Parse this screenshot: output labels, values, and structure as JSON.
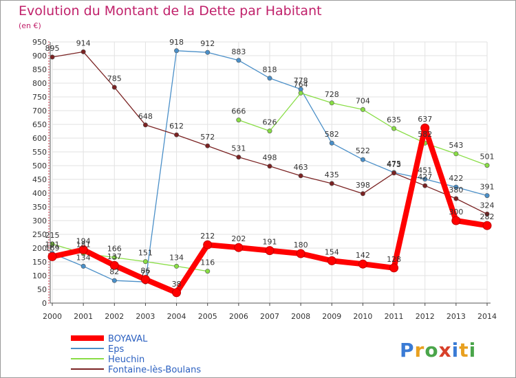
{
  "title": "Evolution du Montant de la Dette par Habitant",
  "subtitle": "(en €)",
  "logo_text": "Proxiti",
  "chart_data": {
    "type": "line",
    "title": "Evolution du Montant de la Dette par Habitant",
    "ylabel": "(en €)",
    "xlabel": "",
    "ylim": [
      0,
      950
    ],
    "yticks": [
      0,
      50,
      100,
      150,
      200,
      250,
      300,
      350,
      400,
      450,
      500,
      550,
      600,
      650,
      700,
      750,
      800,
      850,
      900,
      950
    ],
    "categories": [
      "2000",
      "2001",
      "2002",
      "2003",
      "2004",
      "2005",
      "2006",
      "2007",
      "2008",
      "2009",
      "2010",
      "2011",
      "2012",
      "2013",
      "2014"
    ],
    "grid": true,
    "legend_position": "bottom-left",
    "series": [
      {
        "name": "BOYAVAL",
        "color": "#ff0000",
        "values": [
          169,
          194,
          137,
          86,
          38,
          212,
          202,
          191,
          180,
          154,
          142,
          128,
          637,
          300,
          282
        ],
        "labels": [
          "169",
          "194",
          "137",
          "86",
          "38",
          "212",
          "202",
          "191",
          "180",
          "154",
          "142",
          "128",
          "637",
          "300",
          "282"
        ]
      },
      {
        "name": "Eps",
        "color": "#4a8fc8",
        "values": [
          181,
          134,
          82,
          77,
          918,
          912,
          883,
          818,
          778,
          582,
          522,
          475,
          451,
          422,
          391
        ],
        "labels": [
          "181",
          "134",
          "82",
          "77",
          "918",
          "912",
          "883",
          "818",
          "778",
          "582",
          "522",
          "475",
          "451",
          "422",
          "391"
        ]
      },
      {
        "name": "Heuchin",
        "color": "#88dd44",
        "values": [
          215,
          181,
          166,
          151,
          134,
          116,
          666,
          626,
          764,
          728,
          704,
          635,
          582,
          543,
          501
        ],
        "labels": [
          "215",
          "181",
          "166",
          "151",
          "134",
          "116",
          "666",
          "626",
          "764",
          "728",
          "704",
          "635",
          "582",
          "543",
          "501"
        ]
      },
      {
        "name": "Fontaine-lès-Boulans",
        "color": "#7a2222",
        "values": [
          895,
          914,
          785,
          648,
          612,
          572,
          531,
          498,
          463,
          435,
          398,
          473,
          427,
          380,
          324
        ],
        "labels": [
          "895",
          "914",
          "785",
          "648",
          "612",
          "572",
          "531",
          "498",
          "463",
          "435",
          "398",
          "473",
          "427",
          "380",
          "324"
        ]
      }
    ],
    "gaps": [
      {
        "series": "Heuchin",
        "from": "2005",
        "to": "2006"
      }
    ]
  }
}
